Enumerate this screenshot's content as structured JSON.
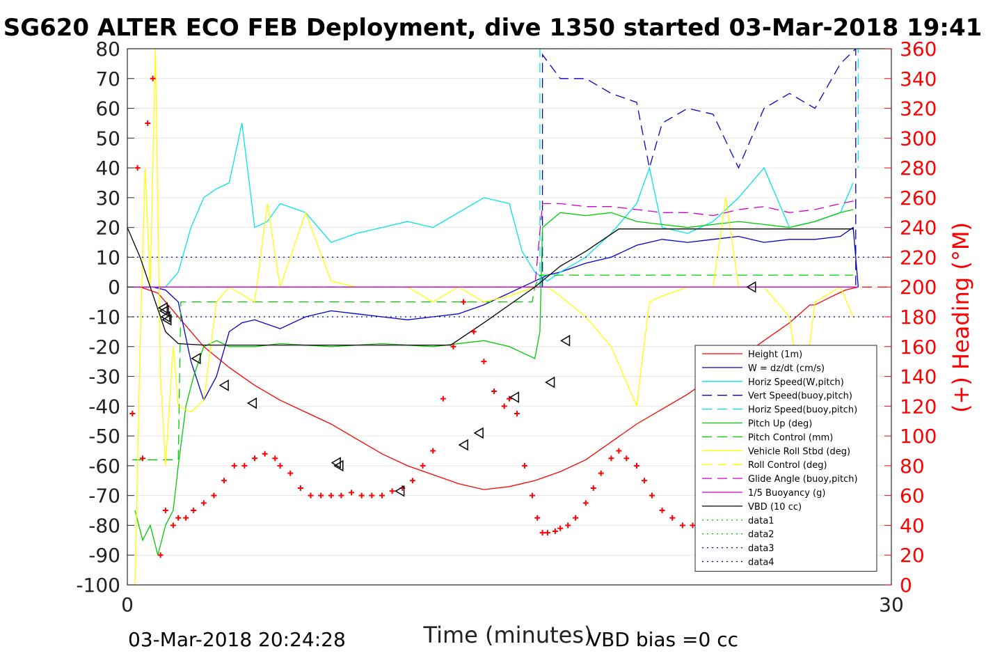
{
  "chart_data": {
    "type": "line",
    "title": "SG620 ALTER ECO FEB Deployment, dive 1350 started 03-Mar-2018 19:41",
    "xlabel": "Time (minutes)",
    "ylabel_right": "(+) Heading (°M)",
    "footer_left": "03-Mar-2018 20:24:28",
    "footer_right": "VBD bias =0 cc",
    "xlim": [
      0,
      30
    ],
    "ylim": [
      -100,
      80
    ],
    "ylim_right": [
      0,
      360
    ],
    "x_ticks": [
      "0",
      "30"
    ],
    "y_ticks": [
      "80",
      "70",
      "60",
      "50",
      "40",
      "30",
      "20",
      "10",
      "0",
      "-10",
      "-20",
      "-30",
      "-40",
      "-50",
      "-60",
      "-70",
      "-80",
      "-90",
      "-100"
    ],
    "y_right_ticks": [
      "360",
      "340",
      "320",
      "300",
      "280",
      "260",
      "240",
      "220",
      "200",
      "180",
      "160",
      "140",
      "120",
      "100",
      "80",
      "60",
      "40",
      "20",
      "0"
    ],
    "legend_position": "right",
    "colors": {
      "red": "#ff0000",
      "blue": "#0000cc",
      "cyan": "#00e5e5",
      "green": "#00cc00",
      "yellow": "#ffff00",
      "magenta": "#cc00cc",
      "black": "#000000",
      "axis_right": "#ff0000"
    },
    "series": [
      {
        "name": "Height (1m)",
        "color": "#ff0000",
        "style": "solid",
        "x": [
          0,
          0.5,
          1.2,
          1.5,
          2,
          3,
          4,
          5,
          6,
          7,
          8,
          9,
          10,
          11,
          12,
          13,
          14,
          15,
          16,
          17,
          18,
          19,
          20,
          21,
          22,
          23,
          24,
          25,
          26,
          26.8,
          27,
          27.7,
          28.2,
          28.7
        ],
        "y": [
          0,
          0,
          -2,
          -5,
          -10,
          -20,
          -27,
          -33,
          -38,
          -42,
          -46,
          -51,
          -56,
          -60,
          -63,
          -66,
          -68,
          -67,
          -65,
          -62,
          -58,
          -52,
          -46,
          -41,
          -36,
          -30,
          -24,
          -18,
          -12,
          -6,
          -6,
          -3,
          -1,
          0
        ]
      },
      {
        "name": "W = dz/dt (cm/s)",
        "color": "#0000cc",
        "style": "solid",
        "x": [
          0.5,
          1,
          1.5,
          2,
          2.5,
          3,
          3.5,
          4,
          4.5,
          5,
          6,
          7,
          8,
          9,
          10,
          11,
          12,
          13,
          14,
          15,
          16,
          16.5,
          17,
          18,
          19,
          20,
          21,
          22,
          23,
          24,
          25,
          26,
          27,
          28,
          28.5,
          28.7
        ],
        "y": [
          0,
          0,
          -1,
          -5,
          -25,
          -38,
          -30,
          -15,
          -12,
          -11,
          -14,
          -10,
          -8,
          -9,
          -10,
          -11,
          -10,
          -9,
          -6,
          -2,
          2,
          4,
          5,
          8,
          10,
          14,
          16,
          15,
          16,
          17,
          15,
          16,
          16,
          17,
          20,
          0
        ]
      },
      {
        "name": "Horiz Speed(W,pitch)",
        "color": "#00e5e5",
        "style": "solid",
        "x": [
          0.5,
          1,
          1.5,
          2,
          2.5,
          3,
          3.5,
          4,
          4.5,
          5,
          5.5,
          6,
          7,
          8,
          9,
          10,
          11,
          12,
          13,
          14,
          15,
          15.5,
          16,
          16.5,
          17,
          18,
          19,
          20,
          20.5,
          21,
          22,
          23,
          24,
          25,
          26,
          27,
          28,
          28.5
        ],
        "y": [
          0,
          0,
          0,
          5,
          20,
          30,
          33,
          35,
          55,
          20,
          22,
          28,
          25,
          15,
          18,
          20,
          22,
          20,
          25,
          30,
          28,
          12,
          5,
          2,
          5,
          10,
          18,
          28,
          40,
          20,
          18,
          22,
          30,
          40,
          20,
          22,
          25,
          35
        ]
      },
      {
        "name": "Vert Speed(buoy,pitch)",
        "color": "#0000cc",
        "style": "dashed",
        "x": [
          16.3,
          16.3,
          17,
          18,
          19,
          20,
          20.5,
          21,
          22,
          23,
          24,
          25,
          26,
          27,
          28,
          28.6,
          28.6
        ],
        "y": [
          0,
          78,
          70,
          70,
          65,
          62,
          40,
          55,
          60,
          58,
          40,
          60,
          65,
          60,
          75,
          80,
          0
        ]
      },
      {
        "name": "Horiz Speed(buoy,pitch)",
        "color": "#00e5e5",
        "style": "dashed",
        "x": [
          16.2,
          16.2,
          28.7,
          28.7
        ],
        "y": [
          0,
          80,
          80,
          40
        ]
      },
      {
        "name": "Pitch Up (deg)",
        "color": "#00cc00",
        "style": "solid",
        "x": [
          0.3,
          0.6,
          0.9,
          1.2,
          1.5,
          1.8,
          2,
          2.3,
          2.6,
          3,
          3.5,
          4,
          5,
          6,
          8,
          10,
          12,
          14,
          15,
          15.5,
          16,
          16.2,
          16.3,
          17,
          18,
          19,
          20,
          21,
          22,
          23,
          24,
          25,
          26,
          27,
          28,
          28.5
        ],
        "y": [
          -75,
          -85,
          -80,
          -90,
          -80,
          -75,
          -60,
          -40,
          -30,
          -20,
          -18,
          -20,
          -20,
          -19,
          -20,
          -19,
          -20,
          -18,
          -20,
          -22,
          -24,
          -15,
          20,
          25,
          24,
          25,
          22,
          21,
          20,
          21,
          22,
          21,
          20,
          22,
          25,
          26
        ]
      },
      {
        "name": "Pitch Control (mm)",
        "color": "#00cc00",
        "style": "dashed",
        "x": [
          0.2,
          2,
          2.1,
          2.2,
          15.9,
          16,
          16.2,
          28.5
        ],
        "y": [
          -58,
          -58,
          -5,
          -5,
          -5,
          0,
          4,
          4
        ]
      },
      {
        "name": "Vehicle Roll Stbd (deg)",
        "color": "#ffff00",
        "style": "solid",
        "x": [
          0.3,
          0.5,
          0.7,
          0.9,
          1.1,
          1.3,
          1.5,
          1.8,
          2,
          2.5,
          3,
          3.5,
          4,
          5,
          5.5,
          6,
          7,
          8,
          9,
          10,
          11,
          12,
          13,
          14,
          15,
          16,
          16.5,
          17,
          18,
          19,
          20,
          20.5,
          21,
          22,
          23,
          23.5,
          24,
          25,
          26,
          26.5,
          27,
          28,
          28.5
        ],
        "y": [
          -100,
          -20,
          40,
          0,
          80,
          -30,
          -60,
          -20,
          -40,
          -42,
          -38,
          -5,
          0,
          -5,
          28,
          0,
          25,
          2,
          0,
          0,
          0,
          -5,
          0,
          -5,
          -3,
          0,
          0,
          -3,
          -10,
          -20,
          -40,
          -5,
          -3,
          0,
          0,
          30,
          0,
          0,
          -10,
          -40,
          -5,
          0,
          -10
        ]
      },
      {
        "name": "Roll Control (deg)",
        "color": "#ffff00",
        "style": "dashed",
        "x": [
          0,
          28.7
        ],
        "y": [
          0,
          0
        ]
      },
      {
        "name": "Glide Angle (buoy,pitch)",
        "color": "#cc00cc",
        "style": "dashed",
        "x": [
          0,
          16,
          16.3,
          17,
          18,
          19,
          20,
          21,
          22,
          23,
          24,
          25,
          26,
          27,
          28,
          28.6
        ],
        "y": [
          0,
          0,
          28,
          28,
          27,
          27,
          26,
          25,
          25,
          24,
          26,
          27,
          25,
          26,
          28,
          29
        ]
      },
      {
        "name": "1/5 Buoyancy (g)",
        "color": "#cc00cc",
        "style": "solid",
        "x": [
          0,
          28.7
        ],
        "y": [
          0,
          0
        ]
      },
      {
        "name": "VBD (10 cc)",
        "color": "#000000",
        "style": "solid",
        "x": [
          0,
          0.5,
          1.5,
          2,
          3,
          6,
          9,
          12,
          12.7,
          14,
          16,
          17,
          18,
          19.3,
          20,
          24,
          28.5
        ],
        "y": [
          20,
          10,
          -15,
          -19,
          -19.5,
          -19.5,
          -19.5,
          -19.5,
          -19.5,
          -12,
          0,
          7,
          12,
          19.5,
          19.5,
          19.5,
          19.5
        ]
      },
      {
        "name": "data1",
        "color": "#00cc00",
        "style": "dotted",
        "x": [],
        "y": []
      },
      {
        "name": "data2",
        "color": "#00cc00",
        "style": "dotted",
        "x": [],
        "y": []
      },
      {
        "name": "data3",
        "color": "#000080",
        "style": "dotted",
        "x": [
          0,
          30
        ],
        "y": [
          10,
          10
        ]
      },
      {
        "name": "data4",
        "color": "#000080",
        "style": "dotted",
        "x": [
          0,
          30
        ],
        "y": [
          -10,
          -10
        ]
      }
    ],
    "reference_lines": [
      {
        "axis": "right",
        "value": 200,
        "color": "#ff0000",
        "style": "dashed"
      }
    ],
    "heading_points": {
      "color": "#ff0000",
      "marker": "+",
      "x": [
        0.2,
        0.4,
        0.6,
        0.8,
        1.0,
        1.3,
        1.5,
        1.8,
        2.0,
        2.3,
        2.6,
        3.0,
        3.4,
        3.8,
        4.2,
        4.6,
        5.0,
        5.4,
        5.8,
        6.0,
        6.4,
        6.8,
        7.2,
        7.6,
        8.0,
        8.4,
        8.8,
        9.2,
        9.6,
        10.0,
        10.4,
        10.8,
        11.2,
        11.6,
        12.0,
        12.4,
        12.8,
        13.2,
        13.6,
        14.0,
        14.4,
        14.8,
        15.0,
        15.3,
        15.6,
        15.9,
        16.1,
        16.3,
        16.5,
        16.8,
        17.0,
        17.3,
        17.6,
        18.0,
        18.3,
        18.6,
        19.0,
        19.3,
        19.6,
        20.0,
        20.3,
        20.6,
        21.0,
        21.4,
        21.8,
        22.2,
        22.6,
        23.0,
        23.4,
        23.8,
        24.2,
        24.6,
        25.0,
        25.4,
        25.8,
        26.2,
        26.6,
        27.0,
        27.4,
        27.8,
        28.2,
        28.6
      ],
      "y": [
        115,
        280,
        85,
        310,
        340,
        20,
        50,
        40,
        45,
        45,
        50,
        55,
        60,
        70,
        80,
        80,
        85,
        88,
        85,
        80,
        75,
        65,
        60,
        60,
        60,
        60,
        62,
        60,
        60,
        60,
        63,
        65,
        70,
        80,
        90,
        125,
        160,
        190,
        170,
        150,
        130,
        120,
        125,
        115,
        80,
        60,
        45,
        35,
        35,
        36,
        38,
        40,
        45,
        55,
        65,
        75,
        85,
        90,
        85,
        80,
        70,
        60,
        50,
        45,
        40,
        40,
        38,
        40,
        45,
        50,
        55,
        60,
        70,
        80,
        85,
        70,
        60,
        50,
        40,
        45,
        55,
        40
      ]
    },
    "triangle_markers": {
      "color": "#000000",
      "marker": "triangle-left",
      "x": [
        1.4,
        1.45,
        1.5,
        1.55,
        2.7,
        3.8,
        4.9,
        8.2,
        8.3,
        10.7,
        13.2,
        13.8,
        15.2,
        16.6,
        17.2,
        24.5
      ],
      "y": [
        -7,
        -8,
        -10,
        -11,
        -24,
        -33,
        -39,
        -59,
        -60,
        -68.5,
        -53,
        -49,
        -37,
        -32,
        -18,
        0
      ]
    }
  },
  "legend": {
    "entries": [
      {
        "label": "Height (1m)",
        "color": "#ff0000",
        "style": "solid"
      },
      {
        "label": "W = dz/dt (cm/s)",
        "color": "#0000cc",
        "style": "solid"
      },
      {
        "label": "Horiz Speed(W,pitch)",
        "color": "#00e5e5",
        "style": "solid"
      },
      {
        "label": "Vert Speed(buoy,pitch)",
        "color": "#0000cc",
        "style": "dashed"
      },
      {
        "label": "Horiz Speed(buoy,pitch)",
        "color": "#00e5e5",
        "style": "dashed"
      },
      {
        "label": "Pitch Up (deg)",
        "color": "#00cc00",
        "style": "solid"
      },
      {
        "label": "Pitch Control (mm)",
        "color": "#00cc00",
        "style": "dashed"
      },
      {
        "label": "Vehicle Roll Stbd (deg)",
        "color": "#ffff00",
        "style": "solid"
      },
      {
        "label": "Roll Control (deg)",
        "color": "#ffff00",
        "style": "dashed"
      },
      {
        "label": "Glide Angle (buoy,pitch)",
        "color": "#cc00cc",
        "style": "dashed"
      },
      {
        "label": "1/5 Buoyancy (g)",
        "color": "#cc00cc",
        "style": "solid"
      },
      {
        "label": "VBD (10 cc)",
        "color": "#000000",
        "style": "solid"
      },
      {
        "label": "data1",
        "color": "#00cc00",
        "style": "dotted"
      },
      {
        "label": "data2",
        "color": "#00cc00",
        "style": "dotted"
      },
      {
        "label": "data3",
        "color": "#000080",
        "style": "dotted"
      },
      {
        "label": "data4",
        "color": "#000080",
        "style": "dotted"
      }
    ]
  }
}
